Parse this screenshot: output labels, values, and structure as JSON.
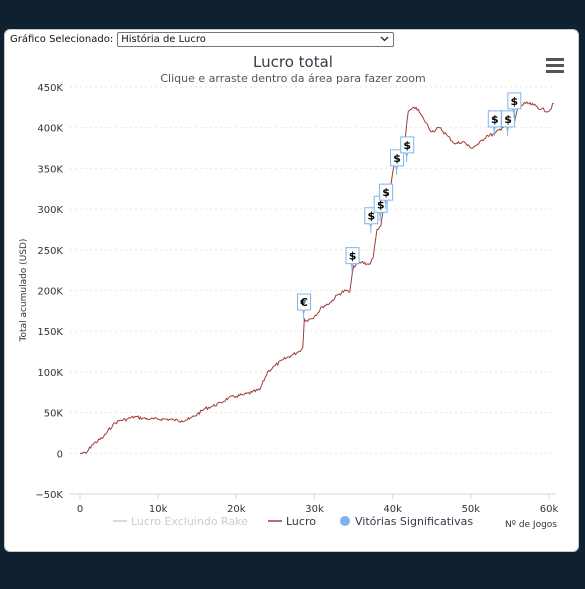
{
  "selector": {
    "label": "Gráfico Selecionado:",
    "value": "História de Lucro"
  },
  "chart_data": {
    "type": "line",
    "title": "Lucro total",
    "subtitle": "Clique e arraste dentro da área para fazer zoom",
    "ylabel": "Total acumulado (USD)",
    "xlabel": "Nº de Jogos",
    "xlim": [
      0,
      60000
    ],
    "ylim": [
      -50000,
      450000
    ],
    "x_ticks": [
      {
        "v": 0,
        "label": "0"
      },
      {
        "v": 10000,
        "label": "10k"
      },
      {
        "v": 20000,
        "label": "20k"
      },
      {
        "v": 30000,
        "label": "30k"
      },
      {
        "v": 40000,
        "label": "40k"
      },
      {
        "v": 50000,
        "label": "50k"
      },
      {
        "v": 60000,
        "label": "60k"
      }
    ],
    "y_ticks": [
      {
        "v": -50000,
        "label": "−50K"
      },
      {
        "v": 0,
        "label": "0"
      },
      {
        "v": 50000,
        "label": "50K"
      },
      {
        "v": 100000,
        "label": "100K"
      },
      {
        "v": 150000,
        "label": "150K"
      },
      {
        "v": 200000,
        "label": "200K"
      },
      {
        "v": 250000,
        "label": "250K"
      },
      {
        "v": 300000,
        "label": "300K"
      },
      {
        "v": 350000,
        "label": "350K"
      },
      {
        "v": 400000,
        "label": "400K"
      },
      {
        "v": 450000,
        "label": "450K"
      }
    ],
    "grid": "horizontal-dotted",
    "legend_position": "bottom-center",
    "series": [
      {
        "name": "Lucro Excluindo Rake",
        "color": "#cccccc",
        "marker": "line",
        "hidden": true
      },
      {
        "name": "Lucro",
        "color": "#a33a3a",
        "marker": "line",
        "x": [
          0,
          800,
          1500,
          3000,
          4200,
          5000,
          6000,
          7000,
          8000,
          9000,
          10000,
          11000,
          12000,
          13000,
          14000,
          15000,
          16000,
          17000,
          18000,
          19000,
          20000,
          21000,
          22000,
          23000,
          24000,
          25000,
          26000,
          27000,
          28000,
          28500,
          28700,
          29000,
          30000,
          31000,
          32000,
          33000,
          34000,
          34500,
          35000,
          36000,
          37000,
          37500,
          38000,
          38500,
          39000,
          39500,
          40000,
          40500,
          41000,
          41500,
          42000,
          43000,
          44000,
          45000,
          46000,
          47000,
          48000,
          49000,
          50000,
          51000,
          52000,
          53000,
          54000,
          55000,
          55500,
          56000,
          57000,
          58000,
          59000,
          60000,
          60600
        ],
        "y": [
          0,
          0,
          10000,
          20000,
          35000,
          40000,
          42000,
          45000,
          43000,
          42000,
          42000,
          42000,
          41000,
          40000,
          42000,
          48000,
          55000,
          58000,
          62000,
          68000,
          70000,
          72000,
          75000,
          78000,
          100000,
          108000,
          115000,
          120000,
          125000,
          130000,
          165000,
          163000,
          168000,
          180000,
          185000,
          195000,
          200000,
          198000,
          230000,
          235000,
          232000,
          240000,
          275000,
          280000,
          310000,
          312000,
          345000,
          370000,
          355000,
          380000,
          420000,
          425000,
          410000,
          395000,
          400000,
          390000,
          380000,
          383000,
          375000,
          380000,
          390000,
          392000,
          400000,
          410000,
          402000,
          425000,
          430000,
          428000,
          423000,
          420000,
          430000
        ]
      },
      {
        "name": "Vitórias Significativas",
        "color": "#7cb5ec",
        "marker": "circle"
      }
    ],
    "flags": [
      {
        "x": 28600,
        "y": 165000,
        "label": "€"
      },
      {
        "x": 34800,
        "y": 222000,
        "label": "$"
      },
      {
        "x": 37200,
        "y": 271000,
        "label": "$"
      },
      {
        "x": 38400,
        "y": 285000,
        "label": "$"
      },
      {
        "x": 39100,
        "y": 300000,
        "label": "$"
      },
      {
        "x": 40500,
        "y": 342000,
        "label": "$"
      },
      {
        "x": 41800,
        "y": 358000,
        "label": "$"
      },
      {
        "x": 53000,
        "y": 390000,
        "label": "$"
      },
      {
        "x": 54700,
        "y": 390000,
        "label": "$"
      },
      {
        "x": 55500,
        "y": 412000,
        "label": "$"
      }
    ]
  }
}
